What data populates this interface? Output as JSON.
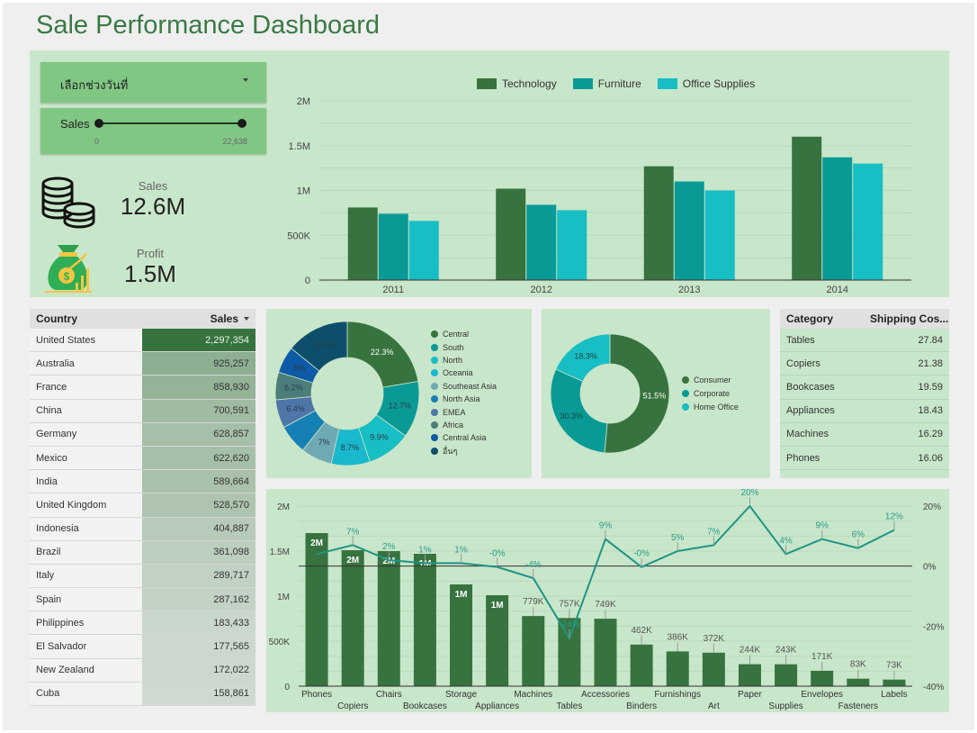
{
  "title": "Sale Performance Dashboard",
  "filters": {
    "date_range_label": "เลือกช่วงวันที่",
    "slider": {
      "label": "Sales",
      "min_label": "0",
      "max_label": "22,638",
      "min": 0,
      "max": 22638
    }
  },
  "kpis": [
    {
      "label": "Sales",
      "value": "12.6M",
      "icon": "coins-icon"
    },
    {
      "label": "Profit",
      "value": "1.5M",
      "icon": "money-bag-icon"
    }
  ],
  "colors": {
    "technology": "#37733f",
    "furniture": "#0a9a96",
    "office_supplies": "#17bec3",
    "bar_green": "#37733f",
    "line_teal": "#1f9486",
    "panel_bg": "#c8e6c9",
    "filter_bg": "#81c784",
    "title": "#3a7a45"
  },
  "country_table": {
    "headers": [
      "Country",
      "Sales"
    ],
    "rows": [
      [
        "United States",
        "2,297,354"
      ],
      [
        "Australia",
        "925,257"
      ],
      [
        "France",
        "858,930"
      ],
      [
        "China",
        "700,591"
      ],
      [
        "Germany",
        "628,857"
      ],
      [
        "Mexico",
        "622,620"
      ],
      [
        "India",
        "589,664"
      ],
      [
        "United Kingdom",
        "528,570"
      ],
      [
        "Indonesia",
        "404,887"
      ],
      [
        "Brazil",
        "361,098"
      ],
      [
        "Italy",
        "289,717"
      ],
      [
        "Spain",
        "287,162"
      ],
      [
        "Philippines",
        "183,433"
      ],
      [
        "El Salvador",
        "177,565"
      ],
      [
        "New Zealand",
        "172,022"
      ],
      [
        "Cuba",
        "158,861"
      ]
    ],
    "values": [
      2297354,
      925257,
      858930,
      700591,
      628857,
      622620,
      589664,
      528570,
      404887,
      361098,
      289717,
      287162,
      183433,
      177565,
      172022,
      158861
    ]
  },
  "category_table": {
    "headers": [
      "Category",
      "Shipping Cos..."
    ],
    "rows": [
      [
        "Tables",
        "27.84"
      ],
      [
        "Copiers",
        "21.38"
      ],
      [
        "Bookcases",
        "19.59"
      ],
      [
        "Appliances",
        "18.43"
      ],
      [
        "Machines",
        "16.29"
      ],
      [
        "Phones",
        "16.06"
      ]
    ]
  },
  "chart_data": [
    {
      "type": "bar",
      "title": "",
      "categories": [
        "2011",
        "2012",
        "2013",
        "2014"
      ],
      "series": [
        {
          "name": "Technology",
          "values": [
            810000,
            1020000,
            1270000,
            1600000
          ]
        },
        {
          "name": "Furniture",
          "values": [
            740000,
            840000,
            1100000,
            1370000
          ]
        },
        {
          "name": "Office Supplies",
          "values": [
            660000,
            780000,
            1000000,
            1300000
          ]
        }
      ],
      "yticks": [
        "0",
        "500K",
        "1M",
        "1.5M",
        "2M"
      ],
      "ylim": [
        0,
        2000000
      ],
      "legend": "top",
      "grid": true
    },
    {
      "type": "pie",
      "variant": "donut",
      "labels": [
        "Central",
        "South",
        "North",
        "Oceania",
        "Southeast Asia",
        "North Asia",
        "EMEA",
        "Africa",
        "Central Asia",
        "อื่นๆ"
      ],
      "values": [
        22.3,
        12.7,
        9.9,
        8.7,
        7.0,
        6.6,
        6.4,
        6.2,
        6.0,
        14.2
      ],
      "data_labels": [
        "22.3%",
        "12.7%",
        "9.9%",
        "8.7%",
        "7%",
        "",
        "6.4%",
        "6.2%",
        "6%",
        "14.2%"
      ],
      "colors": [
        "#37733f",
        "#0a9a96",
        "#17bec3",
        "#1ab8cc",
        "#6fa9b4",
        "#1580b4",
        "#4e76a8",
        "#4b7e7a",
        "#0d5aa6",
        "#0d4f6b"
      ],
      "legend": "right"
    },
    {
      "type": "pie",
      "variant": "donut",
      "labels": [
        "Consumer",
        "Corporate",
        "Home Office"
      ],
      "values": [
        51.5,
        30.3,
        18.3
      ],
      "data_labels": [
        "51.5%",
        "30.3%",
        "18.3%"
      ],
      "colors": [
        "#37733f",
        "#0a9a96",
        "#17bec3"
      ],
      "legend": "right"
    },
    {
      "type": "bar",
      "combo": "bar+line",
      "categories": [
        "Phones",
        "Copiers",
        "Chairs",
        "Bookcases",
        "Storage",
        "Appliances",
        "Machines",
        "Tables",
        "Accessories",
        "Binders",
        "Furnishings",
        "Art",
        "Paper",
        "Supplies",
        "Envelopes",
        "Fasteners",
        "Labels"
      ],
      "series": [
        {
          "name": "Sales",
          "axis": "left",
          "values": [
            1700000,
            1510000,
            1500000,
            1470000,
            1130000,
            1010000,
            779000,
            757000,
            749000,
            462000,
            386000,
            372000,
            244000,
            243000,
            171000,
            83000,
            73000
          ],
          "data_labels": [
            "2M",
            "2M",
            "2M",
            "1M",
            "1M",
            "1M",
            "779K",
            "757K",
            "749K",
            "462K",
            "386K",
            "372K",
            "244K",
            "243K",
            "171K",
            "83K",
            "73K"
          ]
        },
        {
          "name": "Profit Ratio",
          "axis": "right",
          "type": "line",
          "values": [
            4,
            7,
            2,
            1,
            1,
            -0.3,
            -4,
            -24,
            9,
            -0.3,
            5,
            7,
            20,
            4,
            9,
            6,
            12
          ],
          "data_labels": [
            "",
            "7%",
            "2%",
            "1%",
            "1%",
            "-0%",
            "-4%",
            "-24%",
            "9%",
            "-0%",
            "5%",
            "7%",
            "20%",
            "4%",
            "9%",
            "6%",
            "12%"
          ]
        }
      ],
      "yticks_left": [
        "0",
        "500K",
        "1M",
        "1.5M",
        "2M"
      ],
      "ylim_left": [
        0,
        2000000
      ],
      "yticks_right": [
        "-40%",
        "-20%",
        "0%",
        "20%"
      ],
      "ylim_right": [
        -40,
        20
      ],
      "grid": true
    }
  ]
}
